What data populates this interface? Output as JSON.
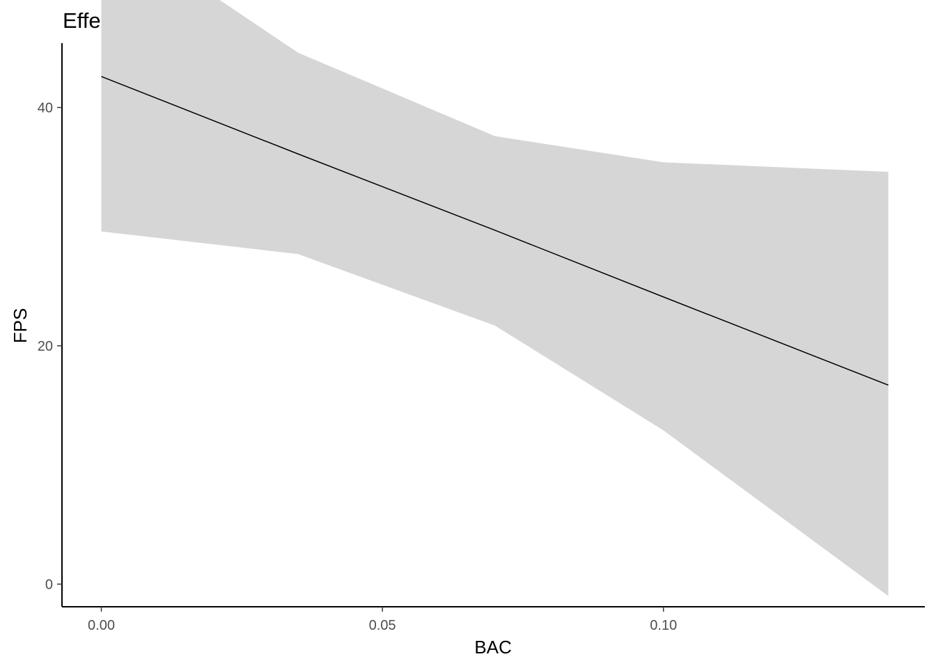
{
  "chart_data": {
    "type": "line",
    "title": "Effect of BAC",
    "xlabel": "BAC",
    "ylabel": "FPS",
    "xlim": [
      -0.007,
      0.1465
    ],
    "ylim": [
      -1.9,
      45.4
    ],
    "x_ticks": [
      0.0,
      0.05,
      0.1
    ],
    "x_tick_labels": [
      "0.00",
      "0.05",
      "0.10"
    ],
    "y_ticks": [
      0,
      20,
      40
    ],
    "y_tick_labels": [
      "0",
      "20",
      "40"
    ],
    "grid": false,
    "legend": "none",
    "series": [
      {
        "x": [
          0.0,
          0.035,
          0.07,
          0.1,
          0.14
        ],
        "y": [
          42.6,
          36.1,
          29.7,
          24.1,
          16.7
        ],
        "ymin": [
          29.6,
          27.7,
          21.7,
          12.9,
          -1.0
        ],
        "ymax": [
          55.7,
          44.6,
          37.6,
          35.4,
          34.6
        ],
        "line_color": "#000000",
        "ribbon_color": "#d6d6d6"
      }
    ]
  }
}
